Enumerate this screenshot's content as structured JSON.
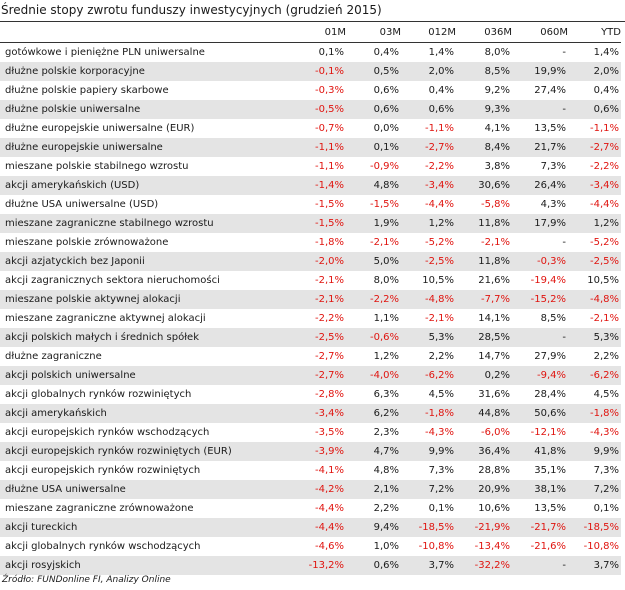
{
  "title": "Średnie stopy zwrotu funduszy inwestycyjnych (grudzień 2015)",
  "headers": [
    "01M",
    "03M",
    "012M",
    "036M",
    "060M",
    "YTD"
  ],
  "rows": [
    {
      "name": "gotówkowe i pieniężne PLN uniwersalne",
      "values": [
        "0,1%",
        "0,4%",
        "1,4%",
        "8,0%",
        "-",
        "1,4%"
      ]
    },
    {
      "name": "dłużne polskie korporacyjne",
      "values": [
        "-0,1%",
        "0,5%",
        "2,0%",
        "8,5%",
        "19,9%",
        "2,0%"
      ]
    },
    {
      "name": "dłużne polskie papiery skarbowe",
      "values": [
        "-0,3%",
        "0,6%",
        "0,4%",
        "9,2%",
        "27,4%",
        "0,4%"
      ]
    },
    {
      "name": "dłużne polskie uniwersalne",
      "values": [
        "-0,5%",
        "0,6%",
        "0,6%",
        "9,3%",
        "-",
        "0,6%"
      ]
    },
    {
      "name": "dłużne europejskie uniwersalne (EUR)",
      "values": [
        "-0,7%",
        "0,0%",
        "-1,1%",
        "4,1%",
        "13,5%",
        "-1,1%"
      ]
    },
    {
      "name": "dłużne europejskie uniwersalne",
      "values": [
        "-1,1%",
        "0,1%",
        "-2,7%",
        "8,4%",
        "21,7%",
        "-2,7%"
      ]
    },
    {
      "name": "mieszane polskie stabilnego wzrostu",
      "values": [
        "-1,1%",
        "-0,9%",
        "-2,2%",
        "3,8%",
        "7,3%",
        "-2,2%"
      ]
    },
    {
      "name": "akcji amerykańskich (USD)",
      "values": [
        "-1,4%",
        "4,8%",
        "-3,4%",
        "30,6%",
        "26,4%",
        "-3,4%"
      ]
    },
    {
      "name": "dłużne USA uniwersalne (USD)",
      "values": [
        "-1,5%",
        "-1,5%",
        "-4,4%",
        "-5,8%",
        "4,3%",
        "-4,4%"
      ]
    },
    {
      "name": "mieszane zagraniczne stabilnego wzrostu",
      "values": [
        "-1,5%",
        "1,9%",
        "1,2%",
        "11,8%",
        "17,9%",
        "1,2%"
      ]
    },
    {
      "name": "mieszane polskie zrównoważone",
      "values": [
        "-1,8%",
        "-2,1%",
        "-5,2%",
        "-2,1%",
        "-",
        "-5,2%"
      ]
    },
    {
      "name": "akcji azjatyckich bez Japonii",
      "values": [
        "-2,0%",
        "5,0%",
        "-2,5%",
        "11,8%",
        "-0,3%",
        "-2,5%"
      ]
    },
    {
      "name": "akcji zagranicznych sektora nieruchomości",
      "values": [
        "-2,1%",
        "8,0%",
        "10,5%",
        "21,6%",
        "-19,4%",
        "10,5%"
      ]
    },
    {
      "name": "mieszane polskie aktywnej alokacji",
      "values": [
        "-2,1%",
        "-2,2%",
        "-4,8%",
        "-7,7%",
        "-15,2%",
        "-4,8%"
      ]
    },
    {
      "name": "mieszane zagraniczne aktywnej alokacji",
      "values": [
        "-2,2%",
        "1,1%",
        "-2,1%",
        "14,1%",
        "8,5%",
        "-2,1%"
      ]
    },
    {
      "name": "akcji polskich małych i średnich spółek",
      "values": [
        "-2,5%",
        "-0,6%",
        "5,3%",
        "28,5%",
        "-",
        "5,3%"
      ]
    },
    {
      "name": "dłużne zagraniczne",
      "values": [
        "-2,7%",
        "1,2%",
        "2,2%",
        "14,7%",
        "27,9%",
        "2,2%"
      ]
    },
    {
      "name": "akcji polskich uniwersalne",
      "values": [
        "-2,7%",
        "-4,0%",
        "-6,2%",
        "0,2%",
        "-9,4%",
        "-6,2%"
      ]
    },
    {
      "name": "akcji globalnych rynków rozwiniętych",
      "values": [
        "-2,8%",
        "6,3%",
        "4,5%",
        "31,6%",
        "28,4%",
        "4,5%"
      ]
    },
    {
      "name": "akcji amerykańskich",
      "values": [
        "-3,4%",
        "6,2%",
        "-1,8%",
        "44,8%",
        "50,6%",
        "-1,8%"
      ]
    },
    {
      "name": "akcji europejskich rynków wschodzących",
      "values": [
        "-3,5%",
        "2,3%",
        "-4,3%",
        "-6,0%",
        "-12,1%",
        "-4,3%"
      ]
    },
    {
      "name": "akcji europejskich rynków rozwiniętych (EUR)",
      "values": [
        "-3,9%",
        "4,7%",
        "9,9%",
        "36,4%",
        "41,8%",
        "9,9%"
      ]
    },
    {
      "name": "akcji europejskich rynków rozwiniętych",
      "values": [
        "-4,1%",
        "4,8%",
        "7,3%",
        "28,8%",
        "35,1%",
        "7,3%"
      ]
    },
    {
      "name": "dłużne USA uniwersalne",
      "values": [
        "-4,2%",
        "2,1%",
        "7,2%",
        "20,9%",
        "38,1%",
        "7,2%"
      ]
    },
    {
      "name": "mieszane zagraniczne zrównoważone",
      "values": [
        "-4,4%",
        "2,2%",
        "0,1%",
        "10,6%",
        "13,5%",
        "0,1%"
      ]
    },
    {
      "name": "akcji tureckich",
      "values": [
        "-4,4%",
        "9,4%",
        "-18,5%",
        "-21,9%",
        "-21,7%",
        "-18,5%"
      ]
    },
    {
      "name": "akcji globalnych rynków wschodzących",
      "values": [
        "-4,6%",
        "1,0%",
        "-10,8%",
        "-13,4%",
        "-21,6%",
        "-10,8%"
      ]
    },
    {
      "name": "akcji rosyjskich",
      "values": [
        "-13,2%",
        "0,6%",
        "3,7%",
        "-32,2%",
        "-",
        "3,7%"
      ]
    }
  ],
  "source": "Źródło: FUNDonline FI, Analizy Online",
  "colors": {
    "negative": "#e0140f",
    "shaded_row": "#e4e4e4",
    "text": "#1a1a1a"
  }
}
